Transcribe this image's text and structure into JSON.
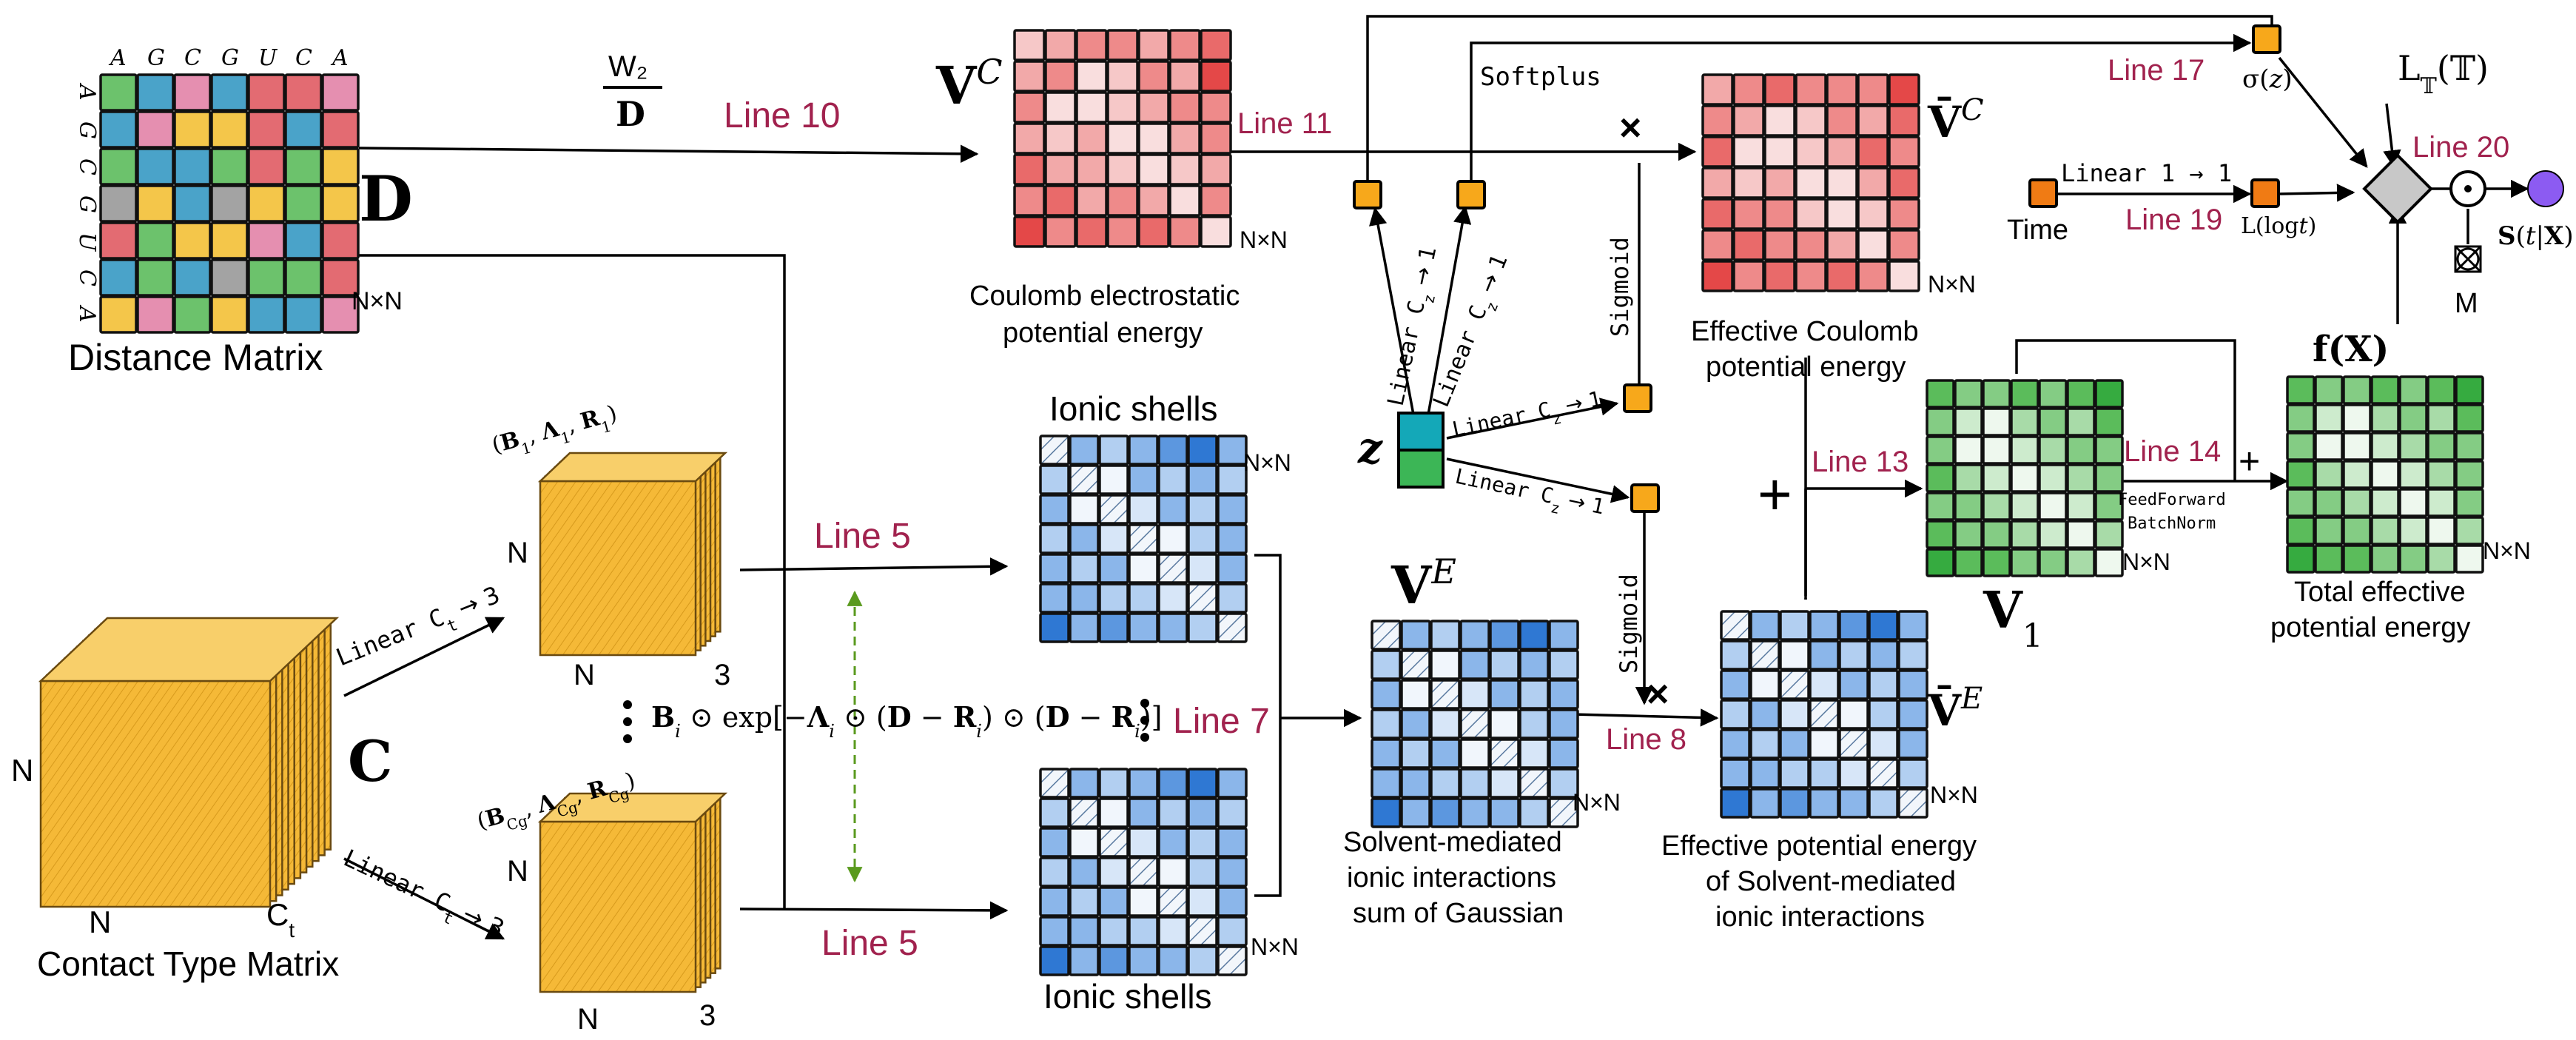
{
  "colors": {
    "red_scale": [
      "#f9dede",
      "#f6c8c8",
      "#f2a9a9",
      "#ee8a8a",
      "#e96a6a",
      "#e44848"
    ],
    "blue_scale": [
      "#f1f6fc",
      "#d7e6f8",
      "#b2cff1",
      "#8bb6ea",
      "#5c97df",
      "#2f78d3"
    ],
    "green_scale": [
      "#eef8ee",
      "#cdebcd",
      "#a8dba8",
      "#84cc84",
      "#5bbc5b",
      "#36ab40"
    ],
    "distance_palette": [
      "#e36b72",
      "#4aa3c9",
      "#f4c64a",
      "#6cc26c",
      "#a3a3a3",
      "#e58fb0"
    ],
    "node_orange": "#f7a81b",
    "output_purple": "#8c5bf2",
    "tensor_yellow": "#f5b937",
    "diamond_gray": "#c8c8c8",
    "line_red": "#a1224e",
    "dashed_green": "#5a9a1e"
  },
  "icons": {
    "sigma": "gate-node",
    "time": "time-node",
    "output": "output-circle",
    "mask": "mask-symbol",
    "combine": "combine-diamond",
    "hadamard": "hadamard-product-circle"
  },
  "distance": {
    "letters": [
      "A",
      "G",
      "C",
      "G",
      "U",
      "C",
      "A"
    ],
    "grid": [
      [
        3,
        1,
        5,
        1,
        0,
        0,
        5
      ],
      [
        1,
        5,
        2,
        2,
        0,
        1,
        0
      ],
      [
        3,
        1,
        1,
        3,
        0,
        3,
        2
      ],
      [
        4,
        2,
        1,
        4,
        2,
        3,
        2
      ],
      [
        0,
        3,
        2,
        2,
        5,
        1,
        0
      ],
      [
        1,
        3,
        1,
        4,
        3,
        3,
        0
      ],
      [
        2,
        5,
        3,
        2,
        1,
        1,
        5
      ]
    ],
    "symbol": "D",
    "nxn": "N×N",
    "caption": "Distance Matrix"
  },
  "vc": {
    "label": "V^C",
    "grid": [
      [
        1,
        2,
        3,
        3,
        2,
        3,
        4
      ],
      [
        2,
        3,
        0,
        1,
        3,
        2,
        5
      ],
      [
        3,
        0,
        0,
        1,
        2,
        3,
        3
      ],
      [
        2,
        1,
        2,
        0,
        0,
        2,
        3
      ],
      [
        4,
        2,
        2,
        1,
        0,
        1,
        2
      ],
      [
        3,
        4,
        2,
        3,
        2,
        0,
        3
      ],
      [
        5,
        3,
        4,
        3,
        4,
        3,
        0
      ]
    ],
    "nxn": "N×N",
    "caption_line1": "Coulomb electrostatic",
    "caption_line2": "potential energy"
  },
  "vbarc": {
    "label": "V̄^C",
    "grid": [
      [
        2,
        3,
        4,
        3,
        3,
        3,
        5
      ],
      [
        3,
        2,
        0,
        1,
        3,
        2,
        4
      ],
      [
        4,
        0,
        0,
        1,
        2,
        4,
        3
      ],
      [
        2,
        1,
        2,
        0,
        0,
        2,
        4
      ],
      [
        4,
        3,
        3,
        1,
        0,
        1,
        3
      ],
      [
        3,
        4,
        3,
        3,
        2,
        0,
        3
      ],
      [
        5,
        3,
        4,
        3,
        4,
        3,
        0
      ]
    ],
    "nxn": "N×N",
    "caption_line1": "Effective Coulomb",
    "caption_line2": "potential energy"
  },
  "shells_top": {
    "title": "Ionic shells",
    "grid": [
      [
        -1,
        3,
        2,
        3,
        4,
        5,
        3
      ],
      [
        2,
        -1,
        0,
        3,
        2,
        3,
        2
      ],
      [
        3,
        0,
        -1,
        1,
        3,
        2,
        3
      ],
      [
        2,
        3,
        1,
        -1,
        0,
        2,
        3
      ],
      [
        3,
        2,
        3,
        0,
        -1,
        1,
        3
      ],
      [
        3,
        3,
        2,
        2,
        1,
        -1,
        2
      ],
      [
        5,
        3,
        4,
        3,
        3,
        2,
        -1
      ]
    ],
    "nxn": "N×N"
  },
  "shells_bottom": {
    "title": "Ionic shells",
    "grid": [
      [
        -1,
        3,
        2,
        3,
        4,
        5,
        3
      ],
      [
        2,
        -1,
        0,
        3,
        2,
        3,
        2
      ],
      [
        3,
        0,
        -1,
        1,
        3,
        2,
        3
      ],
      [
        2,
        3,
        1,
        -1,
        0,
        2,
        3
      ],
      [
        3,
        2,
        3,
        0,
        -1,
        1,
        3
      ],
      [
        3,
        3,
        2,
        2,
        1,
        -1,
        2
      ],
      [
        5,
        3,
        4,
        3,
        3,
        2,
        -1
      ]
    ],
    "nxn": "N×N"
  },
  "ve": {
    "label": "V^E",
    "grid": [
      [
        -1,
        3,
        2,
        3,
        4,
        5,
        3
      ],
      [
        2,
        -1,
        0,
        3,
        2,
        3,
        2
      ],
      [
        3,
        0,
        -1,
        1,
        3,
        2,
        3
      ],
      [
        2,
        3,
        1,
        -1,
        0,
        2,
        3
      ],
      [
        3,
        2,
        3,
        0,
        -1,
        1,
        3
      ],
      [
        3,
        3,
        2,
        2,
        1,
        -1,
        2
      ],
      [
        5,
        3,
        4,
        3,
        3,
        2,
        -1
      ]
    ],
    "nxn": "N×N",
    "caption_line1": "Solvent-mediated",
    "caption_line2": "ionic interactions",
    "caption_line3": "sum of Gaussian"
  },
  "vbare": {
    "label": "V̄^E",
    "grid": [
      [
        -1,
        3,
        2,
        3,
        4,
        5,
        3
      ],
      [
        2,
        -1,
        0,
        3,
        2,
        3,
        2
      ],
      [
        3,
        0,
        -1,
        1,
        3,
        2,
        3
      ],
      [
        2,
        3,
        1,
        -1,
        0,
        2,
        3
      ],
      [
        3,
        2,
        3,
        0,
        -1,
        1,
        3
      ],
      [
        3,
        3,
        2,
        2,
        1,
        -1,
        2
      ],
      [
        5,
        3,
        4,
        3,
        3,
        2,
        -1
      ]
    ],
    "nxn": "N×N",
    "caption_line1": "Effective potential energy",
    "caption_line2": "of Solvent-mediated",
    "caption_line3": "ionic interactions"
  },
  "v1": {
    "label": "V₁",
    "grid": [
      [
        4,
        3,
        3,
        4,
        3,
        4,
        5
      ],
      [
        3,
        1,
        0,
        2,
        3,
        2,
        4
      ],
      [
        3,
        0,
        0,
        1,
        2,
        3,
        3
      ],
      [
        4,
        2,
        1,
        0,
        1,
        2,
        3
      ],
      [
        3,
        3,
        2,
        1,
        0,
        1,
        3
      ],
      [
        4,
        3,
        3,
        2,
        1,
        0,
        2
      ],
      [
        5,
        4,
        4,
        3,
        3,
        2,
        0
      ]
    ],
    "nxn": "N×N"
  },
  "fx": {
    "label": "f(X)",
    "grid": [
      [
        4,
        3,
        3,
        4,
        3,
        4,
        5
      ],
      [
        3,
        1,
        0,
        2,
        3,
        2,
        4
      ],
      [
        3,
        0,
        0,
        1,
        2,
        3,
        3
      ],
      [
        4,
        2,
        1,
        0,
        1,
        2,
        3
      ],
      [
        3,
        3,
        2,
        1,
        0,
        1,
        3
      ],
      [
        4,
        3,
        3,
        2,
        1,
        0,
        2
      ],
      [
        5,
        4,
        4,
        3,
        3,
        2,
        0
      ]
    ],
    "nxn": "N×N",
    "caption_line1": "Total effective",
    "caption_line2": "potential energy"
  },
  "contact": {
    "symbol": "C",
    "n_side": "N",
    "n_bottom": "N",
    "ct_label": "C_t",
    "caption": "Contact Type Matrix"
  },
  "param_top": {
    "label": "(B₁, Λ₁, R₁)",
    "n_side": "N",
    "n_bottom": "N",
    "depth": "3"
  },
  "param_bottom": {
    "label": "(B_Cg, Λ_Cg, R_Cg)",
    "n_side": "N",
    "n_bottom": "N",
    "depth": "3"
  },
  "labels": {
    "w2": "W₂",
    "d_frac": "D",
    "line5_top": "Line 5",
    "line5_bottom": "Line 5",
    "line7": "Line 7",
    "line8": "Line 8",
    "line10": "Line 10",
    "line11": "Line 11",
    "line13": "Line 13",
    "line14": "Line 14",
    "line17": "Line 17",
    "line19": "Line 19",
    "line20": "Line 20",
    "linear_ct_3_top": "Linear C_t → 3",
    "linear_ct_3_bottom": "Linear C_t → 3",
    "softplus": "Softplus",
    "sigmoid_top": "Sigmoid",
    "sigmoid_bottom": "Sigmoid",
    "linear_cz_1": "Linear C_z → 1",
    "linear_1_1": "Linear 1 → 1",
    "gaussian_formula": "Bᵢ ⊙ exp[−Λᵢ ⊙ (D − Rᵢ) ⊙ (D − Rᵢ)]",
    "z": "z",
    "times": "×",
    "plus": "+",
    "time": "Time",
    "sigma_z": "σ(z)",
    "l_logt": "L(log t)",
    "lt": "L𝕋(𝕋)",
    "s_tx": "S(t|X)",
    "m": "M",
    "feedforward": "FeedForward",
    "batchnorm": "BatchNorm"
  }
}
